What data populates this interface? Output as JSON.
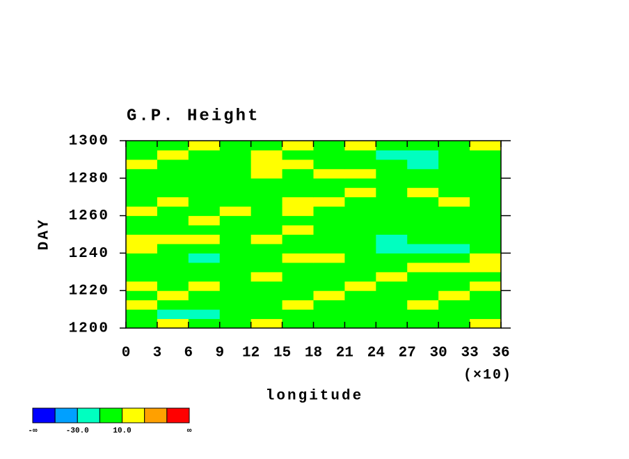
{
  "chart_data": {
    "type": "contour",
    "title": "G.P. Height",
    "xlabel": "longitude",
    "ylabel": "DAY",
    "xscale_label": "(×10)",
    "xlim": [
      0,
      36
    ],
    "ylim": [
      1200,
      1300
    ],
    "xticks": [
      0,
      3,
      6,
      9,
      12,
      15,
      18,
      21,
      24,
      27,
      30,
      33,
      36
    ],
    "yticks": [
      1200,
      1220,
      1240,
      1260,
      1280,
      1300
    ],
    "z": [
      [
        5,
        15,
        5,
        0,
        15,
        5,
        0,
        5,
        -5,
        0,
        5,
        15
      ],
      [
        0,
        -15,
        -15,
        5,
        0,
        -5,
        0,
        5,
        0,
        -5,
        0,
        5
      ],
      [
        15,
        5,
        0,
        -5,
        5,
        15,
        0,
        -5,
        5,
        15,
        0,
        5
      ],
      [
        5,
        15,
        5,
        0,
        -5,
        5,
        15,
        5,
        0,
        5,
        15,
        0
      ],
      [
        15,
        5,
        15,
        5,
        0,
        5,
        0,
        15,
        5,
        0,
        5,
        15
      ],
      [
        0,
        5,
        -5,
        5,
        15,
        5,
        0,
        5,
        15,
        5,
        0,
        5
      ],
      [
        5,
        0,
        5,
        0,
        -5,
        0,
        5,
        0,
        5,
        15,
        15,
        25
      ],
      [
        0,
        -5,
        -15,
        -5,
        0,
        15,
        15,
        0,
        -5,
        0,
        5,
        15
      ],
      [
        15,
        5,
        5,
        0,
        -5,
        0,
        5,
        -5,
        -15,
        -15,
        -25,
        -5
      ],
      [
        15,
        25,
        15,
        5,
        15,
        5,
        0,
        -5,
        -15,
        -5,
        0,
        5
      ],
      [
        5,
        0,
        5,
        0,
        5,
        15,
        5,
        0,
        5,
        0,
        -5,
        0
      ],
      [
        0,
        5,
        15,
        5,
        0,
        5,
        -5,
        0,
        5,
        5,
        0,
        -5
      ],
      [
        15,
        5,
        0,
        15,
        5,
        15,
        5,
        0,
        -5,
        0,
        5,
        0
      ],
      [
        5,
        15,
        5,
        0,
        5,
        15,
        15,
        5,
        0,
        5,
        15,
        5
      ],
      [
        0,
        5,
        0,
        -5,
        0,
        5,
        5,
        15,
        5,
        15,
        5,
        0
      ],
      [
        5,
        0,
        5,
        5,
        0,
        -5,
        0,
        5,
        0,
        5,
        0,
        5
      ],
      [
        0,
        5,
        0,
        5,
        15,
        5,
        15,
        15,
        5,
        0,
        -5,
        -5
      ],
      [
        15,
        5,
        0,
        5,
        15,
        15,
        5,
        0,
        -5,
        -15,
        -5,
        0
      ],
      [
        5,
        15,
        5,
        0,
        15,
        5,
        5,
        0,
        -15,
        -15,
        -5,
        0
      ],
      [
        0,
        5,
        15,
        5,
        0,
        15,
        5,
        15,
        5,
        0,
        -5,
        15
      ]
    ],
    "colorbar": {
      "colors": [
        "#0000ff",
        "#00a0ff",
        "#00ffc0",
        "#00ff00",
        "#ffff00",
        "#ffa000",
        "#ff0000"
      ],
      "levels": [
        -50,
        {
          "value": -30,
          "label": "-30.0"
        },
        -10,
        {
          "value": 10,
          "label": "10.0"
        },
        30,
        50
      ],
      "low_label": "-∞",
      "high_label": "∞"
    }
  }
}
